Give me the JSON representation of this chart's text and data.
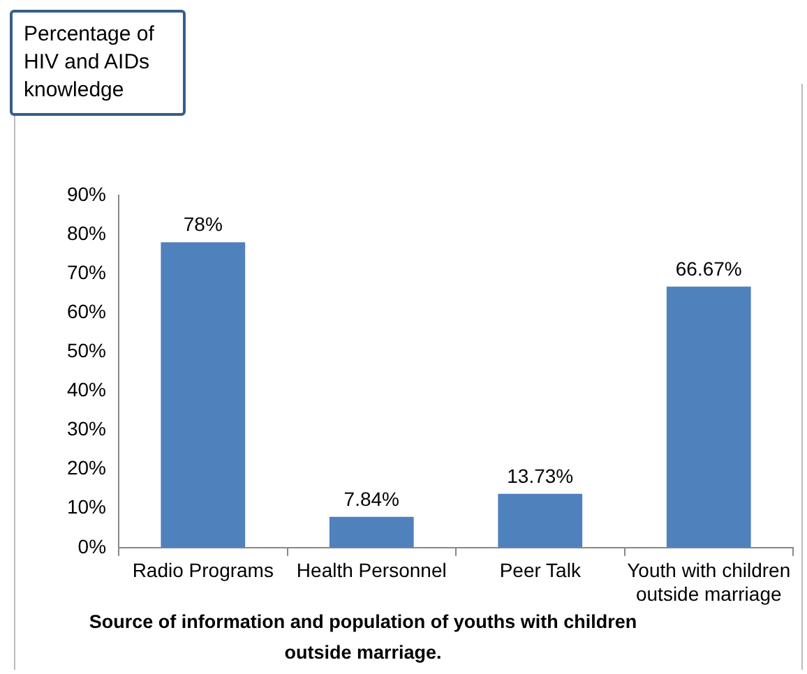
{
  "chart_data": {
    "type": "bar",
    "ylabel": "Percentage of HIV and AIDs knowledge",
    "xlabel": "Source of information and population of youths with children outside marriage.",
    "categories": [
      "Radio Programs",
      "Health Personnel",
      "Peer Talk",
      "Youth with children outside marriage"
    ],
    "values": [
      78,
      7.84,
      13.73,
      66.67
    ],
    "value_labels": [
      "78%",
      "7.84%",
      "13.73%",
      "66.67%"
    ],
    "color": "#4f81bd",
    "ylim": [
      0,
      90
    ],
    "yticks": [
      {
        "value": 0,
        "label": "0%"
      },
      {
        "value": 10,
        "label": "10%"
      },
      {
        "value": 20,
        "label": "20%"
      },
      {
        "value": 30,
        "label": "30%"
      },
      {
        "value": 40,
        "label": "40%"
      },
      {
        "value": 50,
        "label": "50%"
      },
      {
        "value": 60,
        "label": "60%"
      },
      {
        "value": 70,
        "label": "70%"
      },
      {
        "value": 80,
        "label": "80%"
      },
      {
        "value": 90,
        "label": "90%"
      }
    ],
    "grid": false,
    "legend": false
  }
}
